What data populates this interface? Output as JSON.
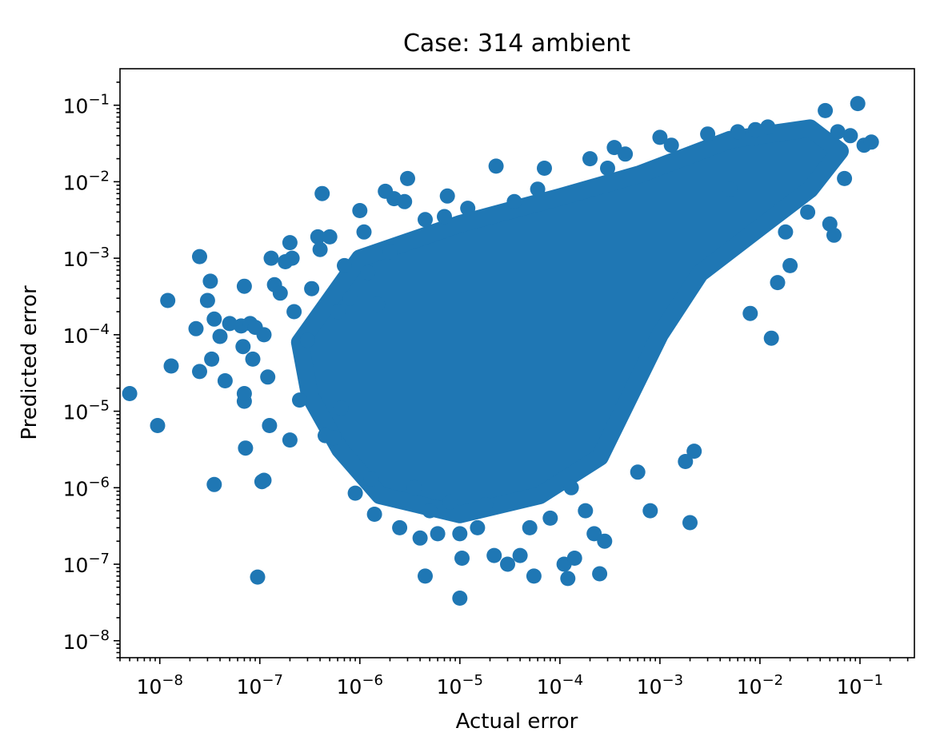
{
  "chart_data": {
    "type": "scatter",
    "title": "Case: 314 ambient",
    "xlabel": "Actual error",
    "ylabel": "Predicted error",
    "xscale": "log",
    "yscale": "log",
    "xlim": [
      4e-09,
      0.35
    ],
    "ylim": [
      6e-09,
      0.3
    ],
    "grid": false,
    "legend": "none",
    "x_ticks": [
      {
        "base": "10",
        "exp": "−8",
        "value": 1e-08
      },
      {
        "base": "10",
        "exp": "−7",
        "value": 1e-07
      },
      {
        "base": "10",
        "exp": "−6",
        "value": 1e-06
      },
      {
        "base": "10",
        "exp": "−5",
        "value": 1e-05
      },
      {
        "base": "10",
        "exp": "−4",
        "value": 0.0001
      },
      {
        "base": "10",
        "exp": "−3",
        "value": 0.001
      },
      {
        "base": "10",
        "exp": "−2",
        "value": 0.01
      },
      {
        "base": "10",
        "exp": "−1",
        "value": 0.1
      }
    ],
    "y_ticks": [
      {
        "base": "10",
        "exp": "−8",
        "value": 1e-08
      },
      {
        "base": "10",
        "exp": "−7",
        "value": 1e-07
      },
      {
        "base": "10",
        "exp": "−6",
        "value": 1e-06
      },
      {
        "base": "10",
        "exp": "−5",
        "value": 1e-05
      },
      {
        "base": "10",
        "exp": "−4",
        "value": 0.0001
      },
      {
        "base": "10",
        "exp": "−3",
        "value": 0.001
      },
      {
        "base": "10",
        "exp": "−2",
        "value": 0.01
      },
      {
        "base": "10",
        "exp": "−1",
        "value": 0.1
      }
    ],
    "series": [
      {
        "color": "#1f77b4",
        "points": [
          [
            5e-09,
            1.7e-05
          ],
          [
            9.5e-09,
            6.5e-06
          ],
          [
            1.2e-08,
            0.00028
          ],
          [
            1.3e-08,
            3.9e-05
          ],
          [
            2.3e-08,
            0.00012
          ],
          [
            2.5e-08,
            0.00105
          ],
          [
            2.5e-08,
            3.3e-05
          ],
          [
            3e-08,
            0.00028
          ],
          [
            3.2e-08,
            0.0005
          ],
          [
            3.3e-08,
            4.8e-05
          ],
          [
            3.5e-08,
            1.1e-06
          ],
          [
            3.5e-08,
            0.00016
          ],
          [
            4e-08,
            9.5e-05
          ],
          [
            4.5e-08,
            2.5e-05
          ],
          [
            5e-08,
            0.00014
          ],
          [
            6.5e-08,
            0.00013
          ],
          [
            6.8e-08,
            7e-05
          ],
          [
            7e-08,
            0.00043
          ],
          [
            7e-08,
            1.35e-05
          ],
          [
            7e-08,
            1.7e-05
          ],
          [
            7.2e-08,
            3.3e-06
          ],
          [
            8e-08,
            0.00014
          ],
          [
            8.5e-08,
            4.8e-05
          ],
          [
            9e-08,
            0.000125
          ],
          [
            9.5e-08,
            6.8e-08
          ],
          [
            1.05e-07,
            1.2e-06
          ],
          [
            1.1e-07,
            1.25e-06
          ],
          [
            1.1e-07,
            0.0001
          ],
          [
            1.2e-07,
            2.8e-05
          ],
          [
            1.25e-07,
            6.5e-06
          ],
          [
            1.3e-07,
            0.001
          ],
          [
            1.4e-07,
            0.00045
          ],
          [
            1.6e-07,
            0.00035
          ],
          [
            1.8e-07,
            0.0009
          ],
          [
            2e-07,
            4.2e-06
          ],
          [
            2e-07,
            0.0016
          ],
          [
            2.1e-07,
            0.001
          ],
          [
            2.2e-07,
            0.0002
          ],
          [
            2.5e-07,
            1.4e-05
          ],
          [
            3e-07,
            8.5e-05
          ],
          [
            3.3e-07,
            0.0004
          ],
          [
            3.8e-07,
            0.0019
          ],
          [
            4e-07,
            0.0013
          ],
          [
            4.2e-07,
            0.007
          ],
          [
            4.5e-07,
            4.8e-06
          ],
          [
            5e-07,
            0.0019
          ],
          [
            5.5e-07,
            4.5e-06
          ],
          [
            6e-07,
            0.0002
          ],
          [
            6.5e-07,
            1.1e-05
          ],
          [
            7e-07,
            0.0008
          ],
          [
            8e-07,
            0.0003
          ],
          [
            9e-07,
            8.5e-07
          ],
          [
            1e-06,
            0.0042
          ],
          [
            1.1e-06,
            0.0022
          ],
          [
            1.2e-06,
            0.00065
          ],
          [
            1.3e-06,
            1.3e-06
          ],
          [
            1.4e-06,
            4.5e-07
          ],
          [
            1.5e-06,
            0.00025
          ],
          [
            1.8e-06,
            0.0075
          ],
          [
            2e-06,
            0.0012
          ],
          [
            2.2e-06,
            0.006
          ],
          [
            2.5e-06,
            3e-07
          ],
          [
            2.8e-06,
            0.0055
          ],
          [
            3e-06,
            0.011
          ],
          [
            3.5e-06,
            1e-06
          ],
          [
            4e-06,
            2.2e-07
          ],
          [
            4.5e-06,
            0.0032
          ],
          [
            4.5e-06,
            7e-08
          ],
          [
            5e-06,
            5e-07
          ],
          [
            6e-06,
            2.5e-07
          ],
          [
            7e-06,
            0.0035
          ],
          [
            7.5e-06,
            0.0065
          ],
          [
            8e-06,
            6.5e-07
          ],
          [
            1e-05,
            2.5e-07
          ],
          [
            1.05e-05,
            1.2e-07
          ],
          [
            1e-05,
            3.6e-08
          ],
          [
            1.2e-05,
            0.0045
          ],
          [
            1.5e-05,
            3e-07
          ],
          [
            1.8e-05,
            6e-07
          ],
          [
            2.2e-05,
            1.3e-07
          ],
          [
            2.3e-05,
            0.016
          ],
          [
            3e-05,
            1e-07
          ],
          [
            3.5e-05,
            0.0055
          ],
          [
            4e-05,
            1.3e-07
          ],
          [
            5e-05,
            3e-07
          ],
          [
            5.5e-05,
            7e-08
          ],
          [
            6e-05,
            0.008
          ],
          [
            7e-05,
            0.015
          ],
          [
            8e-05,
            4e-07
          ],
          [
            0.00011,
            1e-07
          ],
          [
            0.00012,
            6.5e-08
          ],
          [
            0.00013,
            1e-06
          ],
          [
            0.00014,
            1.2e-07
          ],
          [
            0.00018,
            5e-07
          ],
          [
            0.0002,
            0.02
          ],
          [
            0.00022,
            2.5e-07
          ],
          [
            0.00025,
            7.5e-08
          ],
          [
            0.00028,
            2e-07
          ],
          [
            0.0003,
            0.015
          ],
          [
            0.00035,
            0.028
          ],
          [
            0.00045,
            0.023
          ],
          [
            0.0006,
            1.6e-06
          ],
          [
            0.0008,
            5e-07
          ],
          [
            0.001,
            0.038
          ],
          [
            0.0013,
            0.03
          ],
          [
            0.0018,
            2.2e-06
          ],
          [
            0.002,
            3.5e-07
          ],
          [
            0.0022,
            3e-06
          ],
          [
            0.003,
            0.042
          ],
          [
            0.005,
            0.008
          ],
          [
            0.006,
            0.045
          ],
          [
            0.008,
            0.00019
          ],
          [
            0.009,
            0.048
          ],
          [
            0.012,
            0.052
          ],
          [
            0.013,
            9e-05
          ],
          [
            0.015,
            0.00048
          ],
          [
            0.018,
            0.0022
          ],
          [
            0.02,
            0.0008
          ],
          [
            0.03,
            0.004
          ],
          [
            0.045,
            0.085
          ],
          [
            0.05,
            0.0028
          ],
          [
            0.055,
            0.002
          ],
          [
            0.06,
            0.045
          ],
          [
            0.07,
            0.011
          ],
          [
            0.08,
            0.04
          ],
          [
            0.095,
            0.105
          ],
          [
            0.11,
            0.03
          ],
          [
            0.13,
            0.033
          ]
        ]
      }
    ]
  }
}
